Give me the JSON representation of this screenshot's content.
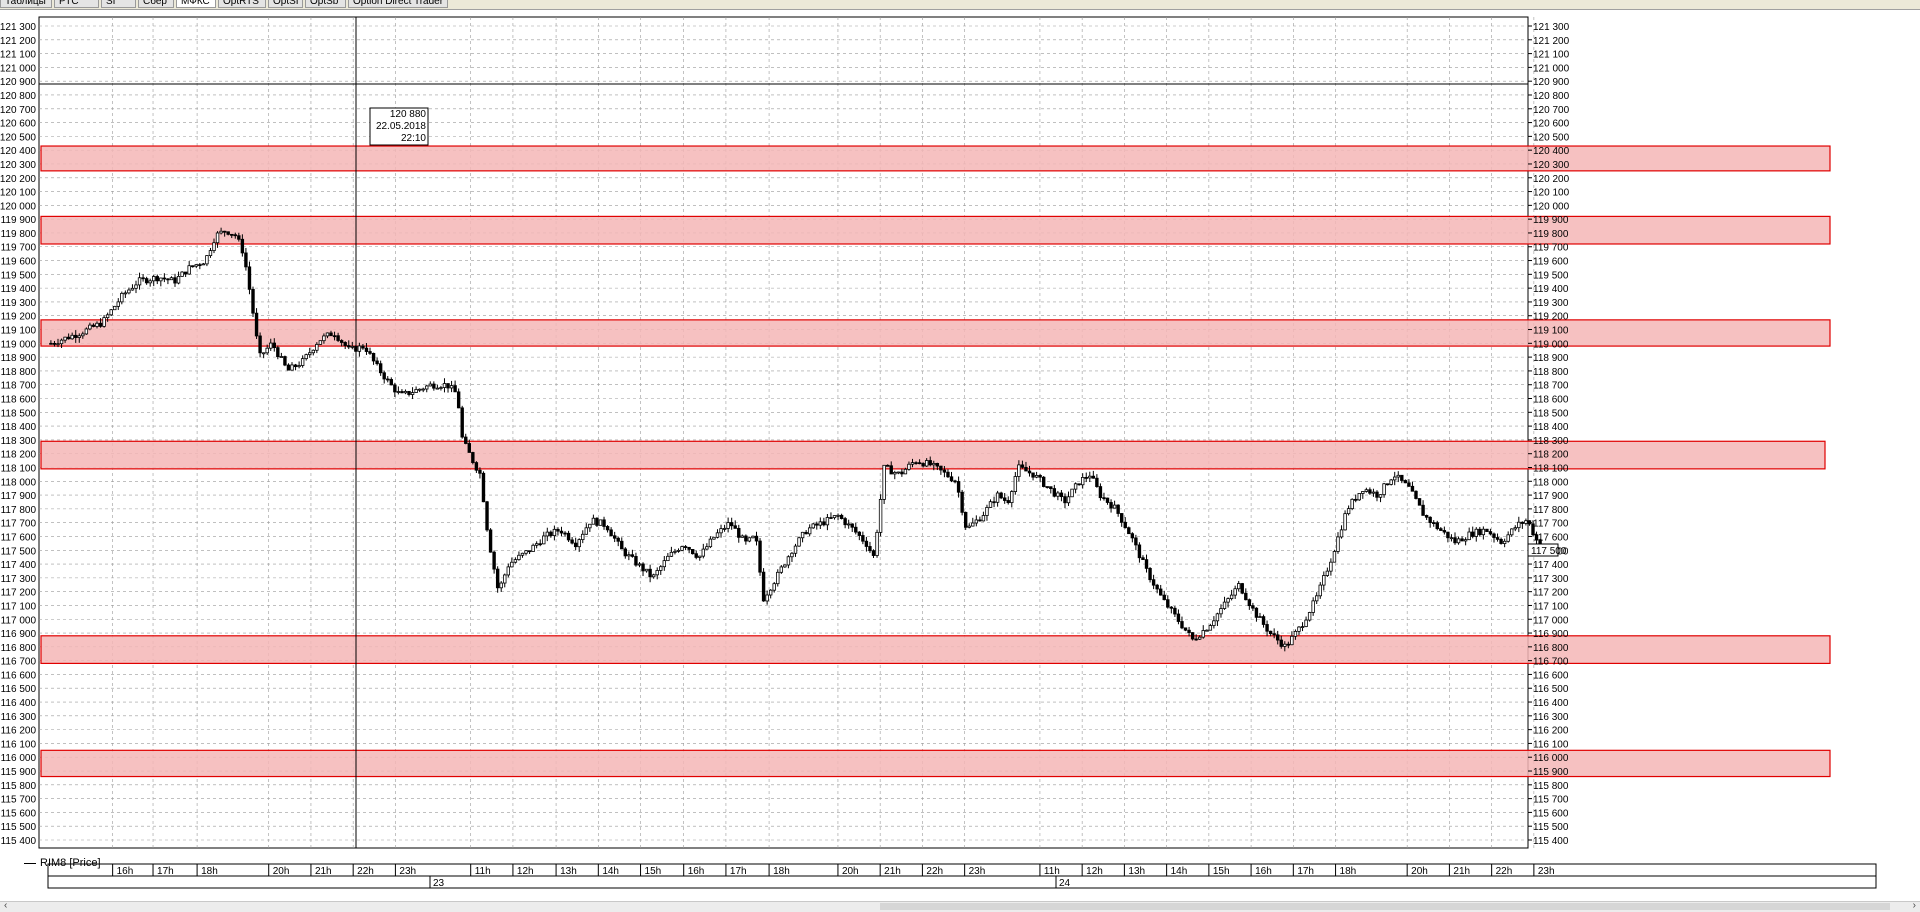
{
  "tabs": [
    {
      "label": "Таблицы"
    },
    {
      "label": "РТС"
    },
    {
      "label": "SI"
    },
    {
      "label": "Сбер"
    },
    {
      "label": "МФКС",
      "active": true
    },
    {
      "label": "OptRTS"
    },
    {
      "label": "OptSI"
    },
    {
      "label": "OptSb"
    },
    {
      "label": "Option Direct Trader"
    }
  ],
  "legend": {
    "label": "RIM8 [Price]"
  },
  "tooltip": {
    "price": "120 880",
    "date": "22.05.2018",
    "time": "22:10"
  },
  "current_price_label": "117 500",
  "colors": {
    "zone_fill": "#f4b6b6",
    "zone_stroke": "#e00000",
    "candle": "#000000",
    "grid": "#9a9a9a"
  },
  "chart_data": {
    "type": "candlestick",
    "y_axis": {
      "min": 115400,
      "max": 121300,
      "step": 100
    },
    "y_tick_labels": [
      "121 300",
      "121 200",
      "121 100",
      "121 000",
      "120 900",
      "120 800",
      "120 700",
      "120 600",
      "120 500",
      "120 400",
      "120 300",
      "120 200",
      "120 100",
      "120 000",
      "119 900",
      "119 800",
      "119 700",
      "119 600",
      "119 500",
      "119 400",
      "119 300",
      "119 200",
      "119 100",
      "119 000",
      "118 900",
      "118 800",
      "118 700",
      "118 600",
      "118 500",
      "118 400",
      "118 300",
      "118 200",
      "118 100",
      "118 000",
      "117 900",
      "117 800",
      "117 700",
      "117 600",
      "117 500",
      "117 400",
      "117 300",
      "117 200",
      "117 100",
      "117 000",
      "116 900",
      "116 800",
      "116 700",
      "116 600",
      "116 500",
      "116 400",
      "116 300",
      "116 200",
      "116 100",
      "116 000",
      "115 900",
      "115 800",
      "115 700",
      "115 600",
      "115 500",
      "115 400"
    ],
    "x_hour_labels": [
      "16h",
      "17h",
      "18h",
      "20h",
      "21h",
      "22h",
      "23h",
      "11h",
      "12h",
      "13h",
      "14h",
      "15h",
      "16h",
      "17h",
      "18h",
      "20h",
      "21h",
      "22h",
      "23h",
      "11h",
      "12h",
      "13h",
      "14h",
      "15h",
      "16h",
      "17h",
      "18h",
      "20h",
      "21h",
      "22h",
      "23h"
    ],
    "x_day_labels": [
      "23",
      "24"
    ],
    "crosshair": {
      "horizontal_price": 120880,
      "vertical_time": "22.05.2018 22:10"
    },
    "zones": [
      {
        "low": 120250,
        "high": 120430
      },
      {
        "low": 119720,
        "high": 119920
      },
      {
        "low": 118980,
        "high": 119170
      },
      {
        "low": 118090,
        "high": 118290
      },
      {
        "low": 116680,
        "high": 116880
      },
      {
        "low": 115860,
        "high": 116050
      }
    ],
    "price_path": [
      [
        0,
        119000
      ],
      [
        0.6,
        119080
      ],
      [
        1,
        119150
      ],
      [
        1.4,
        119350
      ],
      [
        1.7,
        119450
      ],
      [
        2.1,
        119480
      ],
      [
        2.4,
        119450
      ],
      [
        2.7,
        119550
      ],
      [
        3.0,
        119600
      ],
      [
        3.2,
        119780
      ],
      [
        3.4,
        119820
      ],
      [
        3.6,
        119780
      ],
      [
        3.75,
        119650
      ],
      [
        3.9,
        119300
      ],
      [
        4.05,
        118900
      ],
      [
        4.3,
        119000
      ],
      [
        4.6,
        118800
      ],
      [
        4.9,
        118870
      ],
      [
        5.2,
        119020
      ],
      [
        5.5,
        119080
      ],
      [
        5.8,
        118950
      ],
      [
        6.1,
        118980
      ],
      [
        6.3,
        118850
      ],
      [
        6.6,
        118700
      ],
      [
        6.8,
        118620
      ],
      [
        7.1,
        118660
      ],
      [
        7.4,
        118700
      ],
      [
        7.7,
        118700
      ],
      [
        7.9,
        118630
      ],
      [
        8.0,
        118300
      ],
      [
        8.2,
        118150
      ],
      [
        8.35,
        118050
      ],
      [
        8.5,
        117600
      ],
      [
        8.7,
        117200
      ],
      [
        8.9,
        117400
      ],
      [
        9.3,
        117500
      ],
      [
        9.6,
        117600
      ],
      [
        9.9,
        117650
      ],
      [
        10.2,
        117550
      ],
      [
        10.5,
        117720
      ],
      [
        10.8,
        117680
      ],
      [
        11.1,
        117500
      ],
      [
        11.4,
        117400
      ],
      [
        11.7,
        117300
      ],
      [
        12.0,
        117450
      ],
      [
        12.3,
        117550
      ],
      [
        12.6,
        117450
      ],
      [
        12.9,
        117600
      ],
      [
        13.2,
        117700
      ],
      [
        13.5,
        117550
      ],
      [
        13.7,
        117600
      ],
      [
        13.85,
        117150
      ],
      [
        14.1,
        117300
      ],
      [
        14.4,
        117500
      ],
      [
        14.7,
        117650
      ],
      [
        15.0,
        117700
      ],
      [
        15.3,
        117750
      ],
      [
        15.6,
        117650
      ],
      [
        15.85,
        117550
      ],
      [
        16.0,
        117450
      ],
      [
        16.2,
        118100
      ],
      [
        16.5,
        118050
      ],
      [
        16.8,
        118150
      ],
      [
        17.1,
        118120
      ],
      [
        17.4,
        118050
      ],
      [
        17.6,
        118000
      ],
      [
        17.8,
        117650
      ],
      [
        18.1,
        117750
      ],
      [
        18.4,
        117900
      ],
      [
        18.6,
        117850
      ],
      [
        18.8,
        118100
      ],
      [
        19.1,
        118050
      ],
      [
        19.4,
        117950
      ],
      [
        19.7,
        117850
      ],
      [
        20.0,
        118000
      ],
      [
        20.2,
        118050
      ],
      [
        20.4,
        117900
      ],
      [
        20.7,
        117800
      ],
      [
        21.0,
        117600
      ],
      [
        21.3,
        117350
      ],
      [
        21.6,
        117150
      ],
      [
        21.9,
        117000
      ],
      [
        22.2,
        116850
      ],
      [
        22.5,
        116950
      ],
      [
        22.8,
        117100
      ],
      [
        23.1,
        117250
      ],
      [
        23.4,
        117050
      ],
      [
        23.7,
        116900
      ],
      [
        24.0,
        116800
      ],
      [
        24.3,
        116950
      ],
      [
        24.6,
        117150
      ],
      [
        24.9,
        117450
      ],
      [
        25.2,
        117800
      ],
      [
        25.5,
        117950
      ],
      [
        25.8,
        117900
      ],
      [
        26.1,
        118050
      ],
      [
        26.4,
        117950
      ],
      [
        26.7,
        117750
      ],
      [
        27.0,
        117650
      ],
      [
        27.3,
        117560
      ],
      [
        27.6,
        117620
      ],
      [
        27.9,
        117650
      ],
      [
        28.2,
        117560
      ],
      [
        28.5,
        117680
      ],
      [
        28.7,
        117720
      ],
      [
        28.95,
        117520
      ]
    ]
  }
}
